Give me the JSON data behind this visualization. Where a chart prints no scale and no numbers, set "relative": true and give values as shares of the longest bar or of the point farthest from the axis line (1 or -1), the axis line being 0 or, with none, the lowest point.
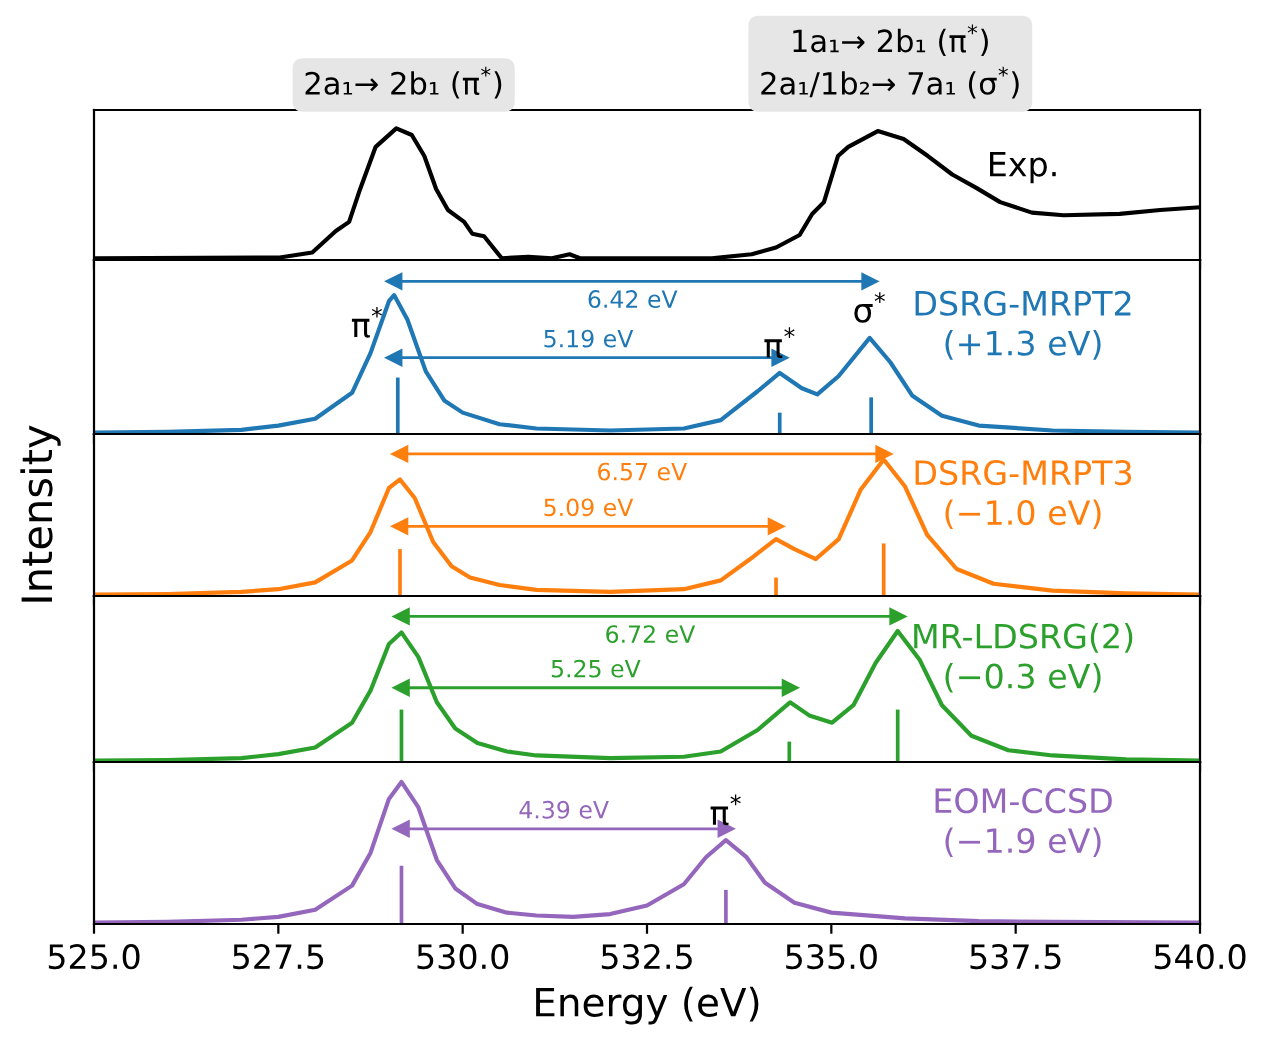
{
  "chart_data": [
    {
      "type": "line",
      "relative": true,
      "tick_labels": false,
      "xlim": [
        525,
        540
      ],
      "xticks": [
        {
          "value": 525,
          "label": null
        },
        {
          "value": 527.5,
          "label": null
        },
        {
          "value": 530,
          "label": null
        },
        {
          "value": 532.5,
          "label": null
        },
        {
          "value": 535,
          "label": null
        },
        {
          "value": 537.5,
          "label": null
        },
        {
          "value": 540,
          "label": null
        }
      ],
      "annotations": [
        "2a₁→ 2b₁ (π$^{*}$)",
        "1a₁→ 2b₁ (π$^{*}$)\n2a₁/1b₂→ 7a₁ (σ$^{*}$)"
      ],
      "series": [
        {
          "name": "Exp.",
          "color": "#000000",
          "x": [
            525.0,
            527.52,
            527.96,
            528.28,
            528.46,
            528.61,
            528.82,
            529.1,
            529.31,
            529.48,
            529.64,
            529.8,
            530.02,
            530.13,
            530.29,
            530.53,
            530.89,
            531.21,
            531.45,
            531.59,
            532.4,
            533.38,
            533.92,
            534.25,
            534.57,
            534.74,
            534.9,
            535.09,
            535.23,
            535.63,
            535.98,
            536.31,
            536.64,
            536.96,
            537.29,
            537.72,
            538.15,
            538.91,
            539.46,
            539.97
          ],
          "values": [
            0.013,
            0.019,
            0.057,
            0.22,
            0.29,
            0.54,
            0.86,
            1.0,
            0.95,
            0.79,
            0.54,
            0.38,
            0.29,
            0.2,
            0.18,
            0.013,
            0.025,
            0.013,
            0.044,
            0.013,
            0.013,
            0.013,
            0.044,
            0.095,
            0.19,
            0.35,
            0.44,
            0.79,
            0.86,
            0.98,
            0.92,
            0.79,
            0.65,
            0.55,
            0.44,
            0.36,
            0.34,
            0.35,
            0.38,
            0.4
          ]
        }
      ]
    },
    {
      "type": "line",
      "relative": true,
      "tick_labels": false,
      "xlim": [
        525,
        540
      ],
      "xticks": [
        {
          "value": 525,
          "label": null
        },
        {
          "value": 527.5,
          "label": null
        },
        {
          "value": 530,
          "label": null
        },
        {
          "value": 532.5,
          "label": null
        },
        {
          "value": 535,
          "label": null
        },
        {
          "value": 537.5,
          "label": null
        },
        {
          "value": 540,
          "label": null
        }
      ],
      "annotations": [
        {
          "text": "6.42 eV",
          "x": 532.3,
          "y": 1.0
        },
        {
          "text": "5.19 eV",
          "x": 531.7,
          "y": 0.5
        },
        {
          "text": "π$^{*}$",
          "x": 529.12,
          "y": 0.37
        },
        {
          "text": "π$^{*}$",
          "x": 534.3,
          "y": 0.4
        },
        {
          "text": "σ$^{*}$",
          "x": 535.52,
          "y": 0.63
        }
      ],
      "series": [
        {
          "name": "DSRG-MRPT2\n(+1.3 eV)",
          "color": "#1f77b4",
          "x": [
            525,
            526,
            527,
            527.5,
            528,
            528.5,
            528.75,
            529.0,
            529.07,
            529.25,
            529.5,
            529.75,
            530,
            530.5,
            531,
            532,
            533,
            533.5,
            534,
            534.3,
            534.6,
            534.81,
            535.1,
            535.52,
            535.8,
            536.1,
            536.5,
            537,
            538,
            539,
            540
          ],
          "values": [
            0.009,
            0.014,
            0.027,
            0.055,
            0.1,
            0.27,
            0.53,
            0.87,
            0.91,
            0.75,
            0.41,
            0.22,
            0.14,
            0.064,
            0.036,
            0.023,
            0.036,
            0.091,
            0.28,
            0.4,
            0.3,
            0.26,
            0.38,
            0.63,
            0.47,
            0.25,
            0.12,
            0.055,
            0.023,
            0.014,
            0.009
          ]
        },
        {
          "type": "bar",
          "color": "#1f77b4",
          "x": [
            529.12,
            534.3,
            535.54
          ],
          "values": [
            0.37,
            0.14,
            0.24
          ]
        },
        {
          "color": "#1f77b4",
          "marker": "triangle",
          "x": [
            529.07,
            535.52
          ],
          "values": [
            1.0,
            1.0
          ]
        },
        {
          "color": "#1f77b4",
          "marker": "triangle",
          "x": [
            529.07,
            534.3
          ],
          "values": [
            0.5,
            0.5
          ]
        }
      ]
    },
    {
      "type": "line",
      "relative": true,
      "tick_labels": false,
      "ylabel": "Intensity",
      "xlim": [
        525,
        540
      ],
      "xticks": [
        {
          "value": 525,
          "label": null
        },
        {
          "value": 527.5,
          "label": null
        },
        {
          "value": 530,
          "label": null
        },
        {
          "value": 532.5,
          "label": null
        },
        {
          "value": 535,
          "label": null
        },
        {
          "value": 537.5,
          "label": null
        },
        {
          "value": 540,
          "label": null
        }
      ],
      "annotations": [
        {
          "text": "6.57 eV",
          "x": 532.43,
          "y": 1.0
        },
        {
          "text": "5.09 eV",
          "x": 531.7,
          "y": 0.49
        }
      ],
      "series": [
        {
          "name": "DSRG-MRPT3\n(−1.0 eV)",
          "color": "#ff7f0e",
          "x": [
            525,
            526,
            527,
            527.5,
            528,
            528.5,
            528.75,
            529.0,
            529.15,
            529.35,
            529.6,
            529.85,
            530.1,
            530.5,
            531,
            532,
            533,
            533.5,
            533.9,
            534.25,
            534.5,
            534.79,
            535.1,
            535.4,
            535.71,
            536.0,
            536.3,
            536.7,
            537.2,
            538,
            539,
            540
          ],
          "values": [
            0.01,
            0.014,
            0.029,
            0.048,
            0.096,
            0.25,
            0.45,
            0.76,
            0.82,
            0.69,
            0.38,
            0.21,
            0.13,
            0.077,
            0.043,
            0.029,
            0.048,
            0.11,
            0.26,
            0.4,
            0.33,
            0.26,
            0.4,
            0.75,
            0.96,
            0.77,
            0.43,
            0.19,
            0.086,
            0.038,
            0.019,
            0.01
          ]
        },
        {
          "type": "bar",
          "color": "#ff7f0e",
          "x": [
            529.15,
            534.25,
            535.71
          ],
          "values": [
            0.33,
            0.13,
            0.37
          ]
        },
        {
          "color": "#ff7f0e",
          "marker": "triangle",
          "x": [
            529.15,
            535.71
          ],
          "values": [
            1.0,
            1.0
          ]
        },
        {
          "color": "#ff7f0e",
          "marker": "triangle",
          "x": [
            529.15,
            534.25
          ],
          "values": [
            0.49,
            0.49
          ]
        }
      ]
    },
    {
      "type": "line",
      "relative": true,
      "tick_labels": false,
      "xlim": [
        525,
        540
      ],
      "xticks": [
        {
          "value": 525,
          "label": null
        },
        {
          "value": 527.5,
          "label": null
        },
        {
          "value": 530,
          "label": null
        },
        {
          "value": 532.5,
          "label": null
        },
        {
          "value": 535,
          "label": null
        },
        {
          "value": 537.5,
          "label": null
        },
        {
          "value": 540,
          "label": null
        }
      ],
      "annotations": [
        {
          "text": "6.72 eV",
          "x": 532.54,
          "y": 1.0
        },
        {
          "text": "5.25 eV",
          "x": 531.8,
          "y": 0.51
        }
      ],
      "series": [
        {
          "name": "MR-LDSRG(2)\n(−0.3 eV)",
          "color": "#2ca02c",
          "x": [
            525,
            526,
            527,
            527.5,
            528,
            528.5,
            528.75,
            529.0,
            529.17,
            529.4,
            529.65,
            529.9,
            530.2,
            530.6,
            531,
            532,
            533,
            533.5,
            534,
            534.44,
            534.7,
            535.01,
            535.3,
            535.6,
            535.9,
            536.2,
            536.5,
            536.9,
            537.4,
            538,
            539,
            540
          ],
          "values": [
            0.009,
            0.014,
            0.027,
            0.054,
            0.1,
            0.27,
            0.49,
            0.81,
            0.89,
            0.72,
            0.41,
            0.23,
            0.13,
            0.072,
            0.045,
            0.027,
            0.036,
            0.072,
            0.22,
            0.41,
            0.32,
            0.27,
            0.39,
            0.68,
            0.9,
            0.7,
            0.39,
            0.18,
            0.081,
            0.045,
            0.018,
            0.009
          ]
        },
        {
          "type": "bar",
          "color": "#2ca02c",
          "x": [
            529.17,
            534.43,
            535.9
          ],
          "values": [
            0.36,
            0.14,
            0.36
          ]
        },
        {
          "color": "#2ca02c",
          "marker": "triangle",
          "x": [
            529.17,
            535.9
          ],
          "values": [
            1.0,
            1.0
          ]
        },
        {
          "color": "#2ca02c",
          "marker": "triangle",
          "x": [
            529.17,
            534.44
          ],
          "values": [
            0.51,
            0.51
          ]
        }
      ]
    },
    {
      "type": "line",
      "relative": true,
      "tick_labels": "x",
      "xlabel": "Energy (eV)",
      "xlim": [
        525,
        540
      ],
      "xticks": [
        {
          "value": 525,
          "label": "525.0"
        },
        {
          "value": 527.5,
          "label": "527.5"
        },
        {
          "value": 530,
          "label": "530.0"
        },
        {
          "value": 532.5,
          "label": "532.5"
        },
        {
          "value": 535,
          "label": "535.0"
        },
        {
          "value": 537.5,
          "label": "537.5"
        },
        {
          "value": 540,
          "label": "540.0"
        }
      ],
      "annotations": [
        {
          "text": "4.39 eV",
          "x": 531.37,
          "y": 0.67
        },
        {
          "text": "π$^{*}$",
          "x": 533.57,
          "y": 0.59
        }
      ],
      "series": [
        {
          "name": "EOM-CCSD\n(−1.9 eV)",
          "color": "#9467bd",
          "x": [
            525,
            526,
            527,
            527.5,
            528,
            528.5,
            528.75,
            529.0,
            529.17,
            529.4,
            529.65,
            529.9,
            530.2,
            530.6,
            531,
            531.5,
            532,
            532.5,
            533,
            533.3,
            533.57,
            533.85,
            534.1,
            534.5,
            535,
            536,
            537,
            538,
            540
          ],
          "values": [
            0.01,
            0.015,
            0.03,
            0.05,
            0.1,
            0.27,
            0.5,
            0.88,
            1.0,
            0.82,
            0.45,
            0.25,
            0.14,
            0.08,
            0.06,
            0.05,
            0.07,
            0.13,
            0.28,
            0.47,
            0.59,
            0.47,
            0.29,
            0.15,
            0.08,
            0.04,
            0.02,
            0.015,
            0.01
          ]
        },
        {
          "type": "bar",
          "color": "#9467bd",
          "x": [
            529.17,
            533.57
          ],
          "values": [
            0.41,
            0.24
          ]
        },
        {
          "color": "#9467bd",
          "marker": "triangle",
          "x": [
            529.17,
            533.57
          ],
          "values": [
            0.67,
            0.67
          ]
        }
      ]
    }
  ]
}
